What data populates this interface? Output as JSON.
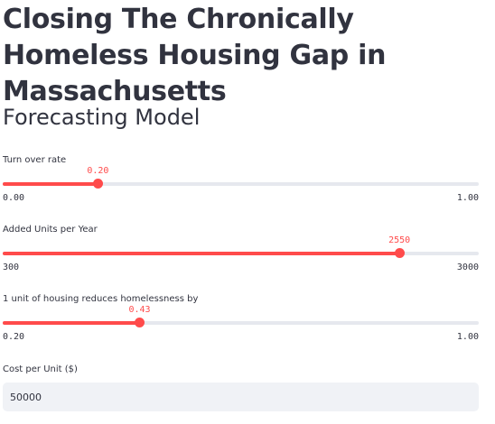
{
  "header": {
    "title": "Closing The Chronically Homeless Housing Gap in Massachusetts"
  },
  "section": {
    "title": "Forecasting Model"
  },
  "sliders": [
    {
      "label": "Turn over rate",
      "value": 0.2,
      "value_text": "0.20",
      "min": 0.0,
      "max": 1.0,
      "min_text": "0.00",
      "max_text": "1.00"
    },
    {
      "label": "Added Units per Year",
      "value": 2550,
      "value_text": "2550",
      "min": 300,
      "max": 3000,
      "min_text": "300",
      "max_text": "3000"
    },
    {
      "label": "1 unit of housing reduces homelessness by",
      "value": 0.43,
      "value_text": "0.43",
      "min": 0.2,
      "max": 1.0,
      "min_text": "0.20",
      "max_text": "1.00"
    }
  ],
  "cost_input": {
    "label": "Cost per Unit ($)",
    "value": "50000"
  },
  "colors": {
    "accent": "#ff4b4b",
    "track": "#e6e8ee",
    "text": "#31333f",
    "input_bg": "#f0f2f6"
  }
}
